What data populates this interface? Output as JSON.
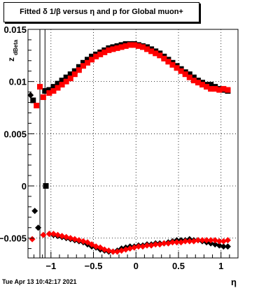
{
  "title": "Fitted δ 1/β versus η and p for Global muon+",
  "stamp": "Tue Apr 13 10:42:17 2021",
  "chart_data": {
    "type": "scatter",
    "title": "Fitted δ 1/β versus η and p for Global muon+",
    "xlabel": "η",
    "ylabel": "z_dBeta",
    "xlim": [
      -1.27,
      1.2
    ],
    "ylim": [
      -0.0069,
      0.015
    ],
    "grid": true,
    "xticks": [
      -1,
      -0.5,
      0,
      0.5,
      1
    ],
    "xtick_labels": [
      "−1",
      "−0.5",
      "0",
      "0.5",
      "1"
    ],
    "yticks": [
      -0.005,
      0,
      0.005,
      0.01,
      0.015
    ],
    "ytick_labels": [
      "−0.005",
      "0",
      "0.005",
      "0.01",
      "0.015"
    ],
    "vlines_x": [
      -1.13,
      -1.07
    ],
    "colors": {
      "black": "#000000",
      "red": "#ff0000",
      "grid": "#000000"
    },
    "series": [
      {
        "marker": "square",
        "color": "#000000",
        "x": [
          -1.07,
          -1.02,
          -0.97,
          -0.92,
          -0.87,
          -0.82,
          -0.77,
          -0.72,
          -0.67,
          -0.62,
          -0.57,
          -0.52,
          -0.47,
          -0.42,
          -0.37,
          -0.32,
          -0.27,
          -0.22,
          -0.17,
          -0.12,
          -0.07,
          -0.02,
          0.03,
          0.08,
          0.13,
          0.18,
          0.23,
          0.28,
          0.33,
          0.38,
          0.43,
          0.48,
          0.53,
          0.58,
          0.63,
          0.68,
          0.73,
          0.78,
          0.83,
          0.88,
          0.93,
          0.98,
          1.03,
          1.08
        ],
        "y": [
          0.0091,
          0.0092,
          0.0095,
          0.0098,
          0.0101,
          0.0104,
          0.0107,
          0.011,
          0.0114,
          0.0118,
          0.0121,
          0.0124,
          0.0126,
          0.0128,
          0.013,
          0.0132,
          0.0133,
          0.0134,
          0.0135,
          0.0136,
          0.0136,
          0.0136,
          0.0135,
          0.0134,
          0.0133,
          0.0131,
          0.0129,
          0.0127,
          0.0124,
          0.0121,
          0.0118,
          0.0115,
          0.0112,
          0.0109,
          0.0107,
          0.0104,
          0.0101,
          0.0099,
          0.0097,
          0.0097,
          0.0095,
          0.0093,
          0.0092,
          0.0091
        ]
      },
      {
        "marker": "square",
        "color": "#000000",
        "x": [
          -1.21,
          -1.06
        ],
        "y": [
          0.0082,
          0.0
        ]
      },
      {
        "marker": "square",
        "color": "#ff0000",
        "x": [
          -1.17,
          -1.13,
          -1.09,
          -1.02,
          -0.97,
          -0.92,
          -0.87,
          -0.82,
          -0.77,
          -0.72,
          -0.67,
          -0.62,
          -0.57,
          -0.52,
          -0.47,
          -0.42,
          -0.37,
          -0.32,
          -0.27,
          -0.22,
          -0.17,
          -0.12,
          -0.07,
          -0.02,
          0.03,
          0.08,
          0.13,
          0.18,
          0.23,
          0.28,
          0.33,
          0.38,
          0.43,
          0.48,
          0.53,
          0.58,
          0.63,
          0.68,
          0.73,
          0.78,
          0.83,
          0.88,
          0.93,
          0.98,
          1.03,
          1.08
        ],
        "y": [
          0.0077,
          0.0095,
          0.0085,
          0.0089,
          0.0091,
          0.0094,
          0.0097,
          0.01,
          0.0103,
          0.0107,
          0.0111,
          0.0115,
          0.0118,
          0.0121,
          0.0124,
          0.0126,
          0.0128,
          0.013,
          0.0131,
          0.0132,
          0.0133,
          0.0134,
          0.0135,
          0.0135,
          0.0134,
          0.0133,
          0.0131,
          0.0129,
          0.0127,
          0.0125,
          0.0122,
          0.0119,
          0.0116,
          0.0113,
          0.011,
          0.0107,
          0.0104,
          0.0101,
          0.0099,
          0.0097,
          0.0095,
          0.0093,
          0.0093,
          0.0092,
          0.0093,
          0.0092
        ]
      },
      {
        "marker": "diamond",
        "color": "#000000",
        "x": [
          -1.24,
          -1.19,
          -1.15,
          -1.02,
          -0.97,
          -0.92,
          -0.87,
          -0.82,
          -0.77,
          -0.72,
          -0.67,
          -0.62,
          -0.57,
          -0.52,
          -0.47,
          -0.42,
          -0.37,
          -0.32,
          -0.27,
          -0.22,
          -0.17,
          -0.12,
          -0.07,
          -0.02,
          0.03,
          0.08,
          0.13,
          0.18,
          0.23,
          0.28,
          0.33,
          0.38,
          0.43,
          0.48,
          0.53,
          0.58,
          0.63,
          0.68,
          0.73,
          0.78,
          0.83,
          0.88,
          0.93,
          0.98,
          1.03,
          1.08
        ],
        "y": [
          0.0087,
          -0.0024,
          -0.004,
          -0.0046,
          -0.0047,
          -0.0048,
          -0.0049,
          -0.005,
          -0.0051,
          -0.0052,
          -0.0053,
          -0.0054,
          -0.0056,
          -0.0058,
          -0.0059,
          -0.0061,
          -0.0062,
          -0.0063,
          -0.0063,
          -0.0062,
          -0.006,
          -0.0059,
          -0.0058,
          -0.0058,
          -0.0057,
          -0.0057,
          -0.0056,
          -0.0056,
          -0.0055,
          -0.0055,
          -0.0055,
          -0.0054,
          -0.0053,
          -0.0052,
          -0.0052,
          -0.0052,
          -0.0051,
          -0.0052,
          -0.0052,
          -0.0053,
          -0.0054,
          -0.0055,
          -0.0056,
          -0.0057,
          -0.0058,
          -0.0058
        ]
      },
      {
        "marker": "diamond",
        "color": "#ff0000",
        "x": [
          -1.22,
          -1.09,
          -1.02,
          -0.97,
          -0.92,
          -0.87,
          -0.82,
          -0.77,
          -0.72,
          -0.67,
          -0.62,
          -0.57,
          -0.52,
          -0.47,
          -0.42,
          -0.37,
          -0.32,
          -0.27,
          -0.22,
          -0.17,
          -0.12,
          -0.07,
          -0.02,
          0.03,
          0.08,
          0.13,
          0.18,
          0.23,
          0.28,
          0.33,
          0.38,
          0.43,
          0.48,
          0.53,
          0.58,
          0.63,
          0.68,
          0.73,
          0.78,
          0.83,
          0.88,
          0.93,
          0.98,
          1.03,
          1.08
        ],
        "y": [
          -0.0051,
          -0.0047,
          -0.0046,
          -0.0046,
          -0.0047,
          -0.0048,
          -0.0049,
          -0.005,
          -0.0051,
          -0.0052,
          -0.0053,
          -0.0054,
          -0.0056,
          -0.0058,
          -0.0059,
          -0.0061,
          -0.0062,
          -0.0063,
          -0.0063,
          -0.0062,
          -0.0061,
          -0.006,
          -0.0059,
          -0.0058,
          -0.0058,
          -0.0057,
          -0.0057,
          -0.0056,
          -0.0056,
          -0.0055,
          -0.0055,
          -0.0054,
          -0.0054,
          -0.0054,
          -0.0053,
          -0.0053,
          -0.0053,
          -0.0052,
          -0.0052,
          -0.0052,
          -0.0052,
          -0.0052,
          -0.0053,
          -0.0053,
          -0.0052
        ]
      }
    ]
  }
}
